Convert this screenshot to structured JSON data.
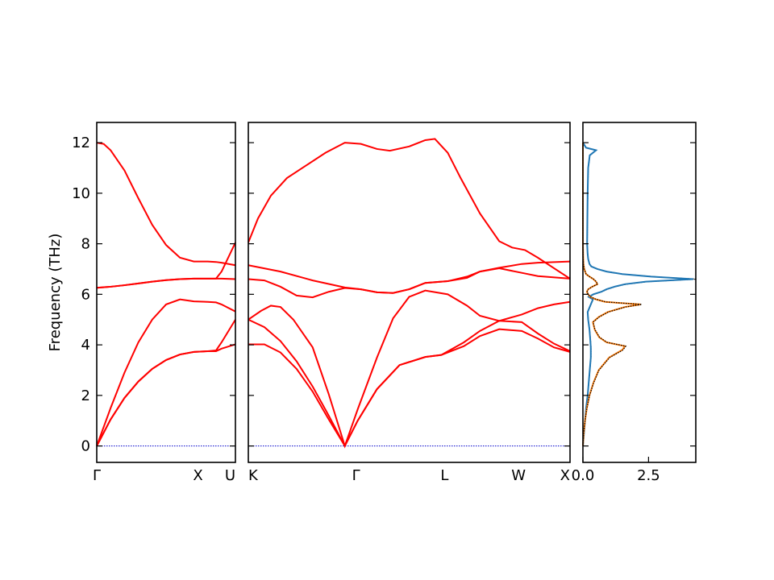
{
  "chart_data": {
    "type": "line",
    "title": "",
    "ylabel": "Frequency (THz)",
    "ylim": [
      -0.65,
      12.8
    ],
    "yticks": [
      "0",
      "2",
      "4",
      "6",
      "8",
      "10",
      "12"
    ],
    "colors": {
      "bands": "#ff0000",
      "zero_line": "#0000cc",
      "dos_total": "#1f77b4",
      "dos_partial": "#ff7f0e",
      "dos_ref": "#000000"
    },
    "panels": [
      {
        "id": "gamma-x-u",
        "x_ticks": [
          "Γ",
          "X",
          "U"
        ],
        "bands": [
          {
            "x": [
              0,
              0.1,
              0.2,
              0.3,
              0.4,
              0.5,
              0.6,
              0.7,
              0.8,
              0.86,
              0.9,
              1.0
            ],
            "y": [
              0,
              1.05,
              1.9,
              2.55,
              3.05,
              3.4,
              3.62,
              3.72,
              3.75,
              3.75,
              3.85,
              4.02
            ]
          },
          {
            "x": [
              0,
              0.1,
              0.2,
              0.3,
              0.4,
              0.5,
              0.6,
              0.7,
              0.8,
              0.86,
              0.9,
              1.0
            ],
            "y": [
              0,
              1.05,
              1.9,
              2.55,
              3.05,
              3.4,
              3.62,
              3.72,
              3.75,
              3.78,
              4.1,
              5.0
            ]
          },
          {
            "x": [
              0,
              0.1,
              0.2,
              0.3,
              0.4,
              0.5,
              0.6,
              0.7,
              0.8,
              0.86,
              0.9,
              1.0
            ],
            "y": [
              0,
              1.5,
              2.9,
              4.1,
              5.0,
              5.6,
              5.8,
              5.72,
              5.7,
              5.68,
              5.6,
              5.32
            ]
          },
          {
            "x": [
              0,
              0.1,
              0.2,
              0.3,
              0.4,
              0.5,
              0.6,
              0.7,
              0.8,
              0.86,
              0.9,
              1.0
            ],
            "y": [
              6.26,
              6.3,
              6.36,
              6.43,
              6.5,
              6.56,
              6.6,
              6.62,
              6.62,
              6.62,
              6.62,
              6.6
            ]
          },
          {
            "x": [
              0,
              0.1,
              0.2,
              0.3,
              0.4,
              0.5,
              0.6,
              0.7,
              0.8,
              0.86,
              0.9,
              1.0
            ],
            "y": [
              6.26,
              6.3,
              6.36,
              6.43,
              6.5,
              6.56,
              6.6,
              6.62,
              6.62,
              6.62,
              6.9,
              8.05
            ]
          },
          {
            "x": [
              0,
              0.05,
              0.1,
              0.2,
              0.3,
              0.4,
              0.5,
              0.6,
              0.7,
              0.8,
              0.86,
              0.9,
              1.0
            ],
            "y": [
              12.0,
              11.95,
              11.7,
              10.9,
              9.8,
              8.75,
              7.95,
              7.45,
              7.3,
              7.3,
              7.28,
              7.25,
              7.15
            ]
          }
        ]
      },
      {
        "id": "k-gamma-l-w-x",
        "x_ticks": [
          "K",
          "Γ",
          "L",
          "W",
          "X"
        ],
        "bands": [
          {
            "x": [
              0,
              0.05,
              0.1,
              0.15,
              0.2,
              0.25,
              0.3,
              0.34,
              0.4,
              0.47,
              0.55,
              0.6,
              0.67,
              0.72,
              0.78,
              0.85,
              0.9,
              0.95,
              1.0
            ],
            "y": [
              4.02,
              4.02,
              3.7,
              3.05,
              2.15,
              1.05,
              0,
              1.0,
              2.25,
              3.2,
              3.52,
              3.6,
              3.95,
              4.35,
              4.62,
              4.55,
              4.25,
              3.9,
              3.72
            ]
          },
          {
            "x": [
              0,
              0.05,
              0.1,
              0.15,
              0.2,
              0.25,
              0.3,
              0.34,
              0.4,
              0.47,
              0.55,
              0.6,
              0.67,
              0.72,
              0.78,
              0.85,
              0.9,
              0.95,
              1.0
            ],
            "y": [
              5.0,
              4.7,
              4.15,
              3.35,
              2.35,
              1.2,
              0,
              1.0,
              2.25,
              3.2,
              3.52,
              3.6,
              4.1,
              4.55,
              4.95,
              4.9,
              4.45,
              4.05,
              3.75
            ]
          },
          {
            "x": [
              0,
              0.04,
              0.07,
              0.1,
              0.14,
              0.2,
              0.25,
              0.3,
              0.34,
              0.4,
              0.45,
              0.5,
              0.55,
              0.62,
              0.68,
              0.72,
              0.78,
              0.85,
              0.9,
              0.95,
              1.0
            ],
            "y": [
              5.0,
              5.35,
              5.55,
              5.5,
              5.0,
              3.9,
              2.05,
              0,
              1.45,
              3.5,
              5.05,
              5.9,
              6.15,
              6.0,
              5.55,
              5.15,
              4.95,
              5.2,
              5.45,
              5.6,
              5.7
            ]
          },
          {
            "x": [
              0,
              0.05,
              0.1,
              0.15,
              0.2,
              0.25,
              0.3,
              0.35,
              0.4,
              0.45,
              0.5,
              0.55,
              0.62,
              0.68,
              0.72,
              0.78,
              0.85,
              0.9,
              1.0
            ],
            "y": [
              6.6,
              6.55,
              6.3,
              5.95,
              5.88,
              6.1,
              6.25,
              6.2,
              6.08,
              6.05,
              6.2,
              6.45,
              6.52,
              6.7,
              6.9,
              7.03,
              6.85,
              6.72,
              6.62
            ]
          },
          {
            "x": [
              0,
              0.1,
              0.2,
              0.3,
              0.35,
              0.4,
              0.45,
              0.5,
              0.55,
              0.62,
              0.68,
              0.72,
              0.78,
              0.85,
              0.9,
              1.0
            ],
            "y": [
              7.15,
              6.9,
              6.55,
              6.27,
              6.2,
              6.08,
              6.05,
              6.2,
              6.45,
              6.52,
              6.65,
              6.9,
              7.05,
              7.2,
              7.25,
              7.3
            ]
          },
          {
            "x": [
              0,
              0.03,
              0.07,
              0.12,
              0.18,
              0.24,
              0.3,
              0.35,
              0.4,
              0.44,
              0.5,
              0.55,
              0.58,
              0.62,
              0.66,
              0.72,
              0.78,
              0.82,
              0.86,
              0.9,
              1.0
            ],
            "y": [
              8.05,
              9.0,
              9.9,
              10.6,
              11.1,
              11.6,
              12.0,
              11.95,
              11.75,
              11.68,
              11.85,
              12.1,
              12.15,
              11.6,
              10.6,
              9.2,
              8.1,
              7.85,
              7.75,
              7.45,
              6.62
            ]
          }
        ]
      },
      {
        "id": "dos",
        "xlim": [
          0,
          4.3
        ],
        "x_ticks": [
          "0.0",
          "2.5"
        ],
        "series": [
          {
            "f": [
              0,
              0.5,
              1.0,
              1.5,
              2.0,
              2.5,
              3.0,
              3.5,
              3.9,
              4.2,
              4.6,
              5.0,
              5.3,
              5.6,
              5.8,
              5.9,
              6.0,
              6.1,
              6.2,
              6.3,
              6.4,
              6.5,
              6.6,
              6.7,
              6.8,
              6.9,
              7.0,
              7.1,
              7.2,
              7.4,
              7.6,
              8.0,
              9.0,
              10.0,
              11.0,
              11.5,
              11.7,
              11.8,
              12.0
            ],
            "dos": [
              0,
              0.04,
              0.08,
              0.12,
              0.18,
              0.22,
              0.26,
              0.3,
              0.3,
              0.28,
              0.25,
              0.2,
              0.18,
              0.3,
              0.38,
              0.22,
              0.4,
              0.7,
              0.9,
              1.2,
              1.6,
              2.4,
              4.2,
              2.6,
              1.5,
              0.9,
              0.55,
              0.32,
              0.25,
              0.2,
              0.18,
              0.16,
              0.17,
              0.18,
              0.2,
              0.26,
              0.5,
              0.12,
              0
            ]
          },
          {
            "f": [
              0,
              0.5,
              1.0,
              1.5,
              2.0,
              2.5,
              3.0,
              3.5,
              3.8,
              3.95,
              4.1,
              4.3,
              4.6,
              4.9,
              5.1,
              5.3,
              5.5,
              5.6,
              5.7,
              5.8,
              5.9,
              6.0,
              6.1,
              6.2,
              6.3,
              6.4,
              6.5,
              6.6,
              6.7,
              6.8,
              7.0,
              7.2,
              7.5,
              8.0,
              9.0,
              10.0,
              11.0,
              12.0
            ],
            "dos": [
              0,
              0.03,
              0.08,
              0.15,
              0.25,
              0.4,
              0.6,
              1.0,
              1.5,
              1.6,
              0.9,
              0.62,
              0.45,
              0.38,
              0.6,
              0.95,
              1.6,
              2.2,
              0.85,
              0.5,
              0.28,
              0.2,
              0.15,
              0.2,
              0.35,
              0.55,
              0.5,
              0.4,
              0.25,
              0.12,
              0.05,
              0.02,
              0.01,
              0,
              0,
              0,
              0,
              0
            ]
          }
        ]
      }
    ]
  }
}
